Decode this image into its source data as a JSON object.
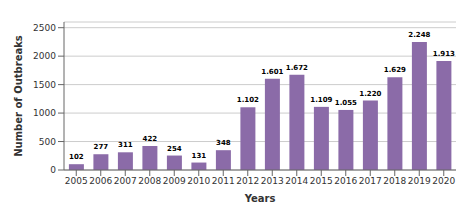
{
  "chart_data": {
    "type": "bar",
    "xlabel": "Years",
    "ylabel": "Number of Outbreaks",
    "categories": [
      "2005",
      "2006",
      "2007",
      "2008",
      "2009",
      "2010",
      "2011",
      "2012",
      "2013",
      "2014",
      "2015",
      "2016",
      "2017",
      "2018",
      "2019",
      "2020"
    ],
    "values": [
      102,
      277,
      311,
      422,
      254,
      131,
      348,
      1102,
      1601,
      1672,
      1109,
      1055,
      1220,
      1629,
      2248,
      1913
    ],
    "value_labels": [
      "102",
      "277",
      "311",
      "422",
      "254",
      "131",
      "348",
      "1.102",
      "1.601",
      "1.672",
      "1.109",
      "1.055",
      "1.220",
      "1.629",
      "2.248",
      "1.913"
    ],
    "data_labels": true,
    "color": "#8B6BA8",
    "ylim": [
      0,
      2600
    ],
    "yticks": [
      0,
      500,
      1000,
      1500,
      2000,
      2500
    ],
    "grid": true
  }
}
